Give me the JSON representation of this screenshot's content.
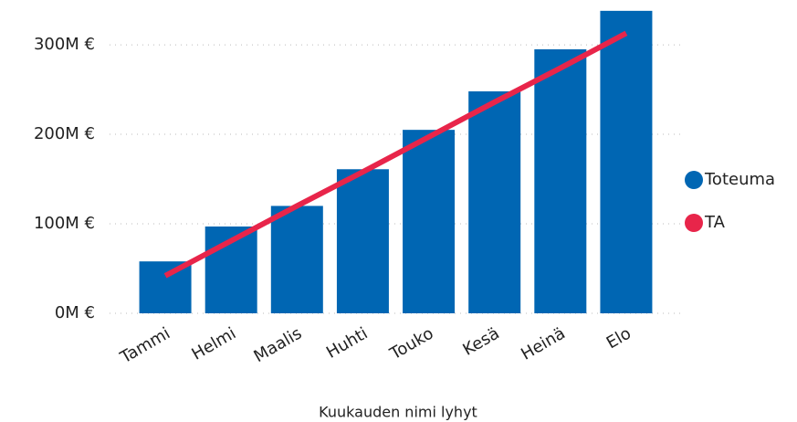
{
  "chart_data": {
    "type": "bar",
    "x_label": "Kuukauden nimi lyhyt",
    "categories": [
      "Tammi",
      "Helmi",
      "Maalis",
      "Huhti",
      "Touko",
      "Kesä",
      "Heinä",
      "Elo"
    ],
    "series": [
      {
        "name": "Toteuma",
        "type": "bar",
        "color": "#0066b3",
        "values": [
          58000000,
          97000000,
          120000000,
          161000000,
          205000000,
          248000000,
          295000000,
          338000000
        ]
      },
      {
        "name": "TA",
        "type": "line",
        "color": "#e8254a",
        "values": [
          42000000,
          81000000,
          120000000,
          158000000,
          197000000,
          236000000,
          274000000,
          313000000
        ]
      }
    ],
    "ylim": [
      0,
      345000000
    ],
    "yticks": [
      {
        "value": 0,
        "label": "0M €"
      },
      {
        "value": 100000000,
        "label": "100M €"
      },
      {
        "value": 200000000,
        "label": "200M €"
      },
      {
        "value": 300000000,
        "label": "300M €"
      }
    ],
    "grid": true,
    "legend": "right"
  }
}
